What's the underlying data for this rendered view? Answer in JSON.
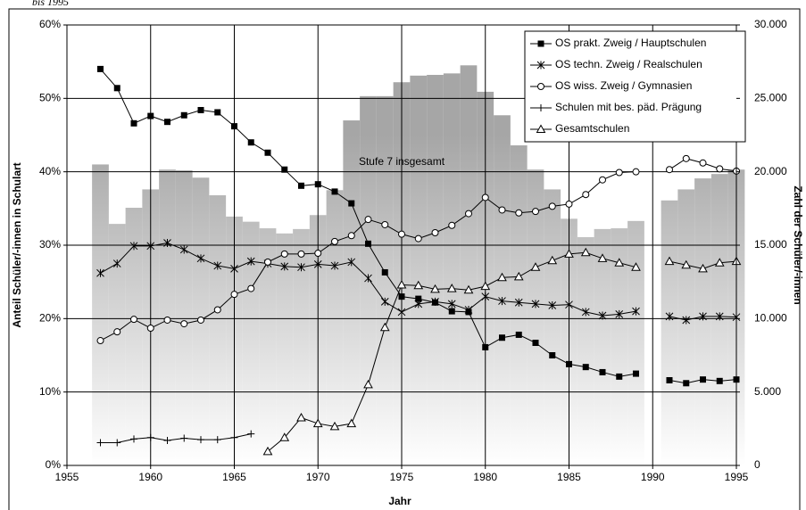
{
  "chart_data": {
    "type": "bar-line",
    "title": "bis 1995",
    "xlabel": "Jahr",
    "ylabel": "Anteil Schüler/-innen in Schulart",
    "y2label": "Zahl der Schüler/-innen",
    "annotation": "Stufe 7 insgesamt",
    "x": [
      1957,
      1958,
      1959,
      1960,
      1961,
      1962,
      1963,
      1964,
      1965,
      1966,
      1967,
      1968,
      1969,
      1970,
      1971,
      1972,
      1973,
      1974,
      1975,
      1976,
      1977,
      1978,
      1979,
      1980,
      1981,
      1982,
      1983,
      1984,
      1985,
      1986,
      1987,
      1988,
      1989,
      1990,
      1991,
      1992,
      1993,
      1994,
      1995
    ],
    "xlim": [
      1955,
      1995
    ],
    "xticks": [
      1955,
      1960,
      1965,
      1970,
      1975,
      1980,
      1985,
      1990,
      1995
    ],
    "ylim": [
      0,
      60
    ],
    "yticks": [
      {
        "value": 0,
        "label": "0%"
      },
      {
        "value": 10,
        "label": "10%"
      },
      {
        "value": 20,
        "label": "20%"
      },
      {
        "value": 30,
        "label": "30%"
      },
      {
        "value": 40,
        "label": "40%"
      },
      {
        "value": 50,
        "label": "50%"
      },
      {
        "value": 60,
        "label": "60%"
      }
    ],
    "y2lim": [
      0,
      30000
    ],
    "y2ticks": [
      0,
      {
        "value": 5000,
        "label": "5.000"
      },
      {
        "value": 10000,
        "label": "10.000"
      },
      {
        "value": 15000,
        "label": "15.000"
      },
      {
        "value": 20000,
        "label": "20.000"
      },
      {
        "value": 25000,
        "label": "25.000"
      },
      {
        "value": 30000,
        "label": "30.000"
      }
    ],
    "grid": true,
    "legend": "upper right",
    "bars": {
      "name": "Stufe 7 insgesamt",
      "axis": "y2",
      "color": "#a6a6a6",
      "values": [
        20500,
        16450,
        17550,
        18800,
        20150,
        20100,
        19600,
        18400,
        16950,
        16600,
        16150,
        15800,
        16100,
        17050,
        18750,
        23500,
        25150,
        25150,
        26100,
        26550,
        26600,
        26700,
        27250,
        25450,
        23850,
        21800,
        20150,
        18800,
        16800,
        15550,
        16100,
        16150,
        16650,
        null,
        18050,
        18800,
        19550,
        19850,
        20150
      ]
    },
    "series": [
      {
        "name": "OS prakt. Zweig / Hauptschulen",
        "color": "#000000",
        "marker": "square",
        "values": [
          54,
          51.4,
          46.6,
          47.6,
          46.8,
          47.7,
          48.4,
          48.1,
          46.2,
          44,
          42.6,
          40.3,
          38.1,
          38.3,
          37.3,
          35.7,
          30.2,
          26.3,
          23,
          22.7,
          22.2,
          21,
          20.9,
          16.1,
          17.4,
          17.8,
          16.7,
          15,
          13.8,
          13.4,
          12.7,
          12.1,
          12.5,
          null,
          11.6,
          11.2,
          11.7,
          11.5,
          11.7
        ]
      },
      {
        "name": "OS techn. Zweig / Realschulen",
        "color": "#000000",
        "marker": "star",
        "values": [
          26.2,
          27.5,
          29.9,
          29.9,
          30.3,
          29.4,
          28.2,
          27.2,
          26.8,
          27.8,
          27.5,
          27.1,
          27,
          27.4,
          27.2,
          27.7,
          25.5,
          22.3,
          20.9,
          22,
          22.3,
          22,
          21.2,
          23,
          22.4,
          22.2,
          22,
          21.8,
          21.9,
          20.9,
          20.4,
          20.6,
          21,
          null,
          20.3,
          19.8,
          20.3,
          20.3,
          20.2
        ]
      },
      {
        "name": "OS wiss. Zweig / Gymnasien",
        "color": "#000000",
        "marker": "circle",
        "values": [
          17,
          18.2,
          19.9,
          18.7,
          19.8,
          19.3,
          19.8,
          21.2,
          23.3,
          24.1,
          27.7,
          28.8,
          28.8,
          28.9,
          30.5,
          31.3,
          33.5,
          32.8,
          31.5,
          30.9,
          31.7,
          32.7,
          34.3,
          36.5,
          34.8,
          34.4,
          34.6,
          35.3,
          35.6,
          36.9,
          38.9,
          39.9,
          40,
          null,
          40.3,
          41.8,
          41.2,
          40.4,
          40.1
        ]
      },
      {
        "name": "Schulen mit bes. päd. Prägung",
        "color": "#000000",
        "marker": "plus",
        "values": [
          3.1,
          3.1,
          3.6,
          3.8,
          3.4,
          3.7,
          3.5,
          3.5,
          3.8,
          4.3,
          null,
          null,
          null,
          null,
          null,
          null,
          null,
          null,
          null,
          null,
          null,
          null,
          null,
          null,
          null,
          null,
          null,
          null,
          null,
          null,
          null,
          null,
          null,
          null,
          null,
          null,
          null,
          null,
          null
        ]
      },
      {
        "name": "Gesamtschulen",
        "color": "#000000",
        "marker": "triangle",
        "values": [
          null,
          null,
          null,
          null,
          null,
          null,
          null,
          null,
          null,
          null,
          1.9,
          3.8,
          6.5,
          5.7,
          5.3,
          5.7,
          11,
          18.8,
          24.6,
          24.5,
          24,
          24.1,
          23.9,
          24.4,
          25.6,
          25.7,
          27,
          27.9,
          28.8,
          29,
          28.2,
          27.6,
          27,
          null,
          27.8,
          27.3,
          26.8,
          27.6,
          27.8
        ]
      }
    ]
  }
}
